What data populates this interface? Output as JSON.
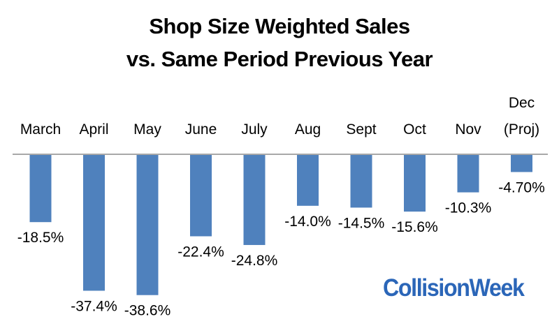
{
  "title_lines": [
    "Shop Size Weighted Sales",
    "vs. Same Period Previous Year"
  ],
  "watermark": "CollisionWeek",
  "colors": {
    "bar": "#4f81bd",
    "axis": "#8c8c8c",
    "text": "#000000",
    "brand": "#2b66b8"
  },
  "chart_data": {
    "type": "bar",
    "title": "Shop Size Weighted Sales vs. Same Period Previous Year",
    "categories": [
      [
        "March"
      ],
      [
        "April"
      ],
      [
        "May"
      ],
      [
        "June"
      ],
      [
        "July"
      ],
      [
        "Aug"
      ],
      [
        "Sept"
      ],
      [
        "Oct"
      ],
      [
        "Nov"
      ],
      [
        "Dec",
        "(Proj)"
      ]
    ],
    "values": [
      -18.5,
      -37.4,
      -38.6,
      -22.4,
      -24.8,
      -14.0,
      -14.5,
      -15.6,
      -10.3,
      -4.7
    ],
    "value_labels": [
      "-18.5%",
      "-37.4%",
      "-38.6%",
      "-22.4%",
      "-24.8%",
      "-14.0%",
      "-14.5%",
      "-15.6%",
      "-10.3%",
      "-4.70%"
    ],
    "xlabel": "",
    "ylabel": "",
    "ylim": [
      -40,
      0
    ],
    "grid": false,
    "legend": "none",
    "category_axis_position": "top"
  }
}
